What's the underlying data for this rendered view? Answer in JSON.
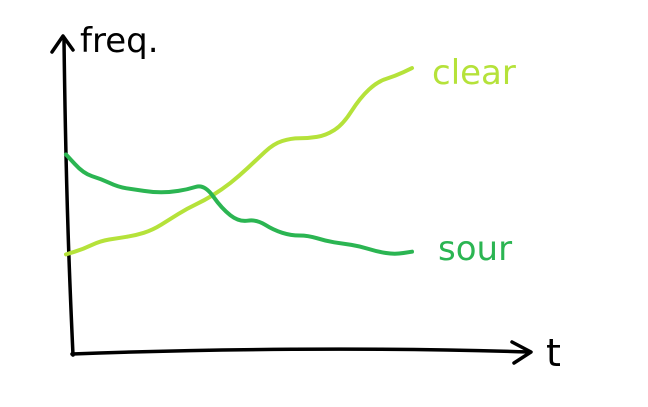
{
  "chart_data": {
    "type": "line",
    "title": "",
    "xlabel": "t",
    "ylabel": "freq.",
    "grid": false,
    "legend": "inline-labels-at-line-ends",
    "xlim": [
      0,
      100
    ],
    "ylim": [
      0,
      100
    ],
    "series": [
      {
        "name": "clear",
        "color": "#b5e23a",
        "x": [
          0,
          5,
          10,
          15,
          20,
          25,
          30,
          35,
          40,
          45,
          50,
          55,
          60,
          65,
          70,
          75,
          80,
          85,
          90,
          95,
          100
        ],
        "values": [
          28,
          30,
          33,
          34,
          35,
          37,
          41,
          45,
          48,
          52,
          57,
          63,
          69,
          71,
          71,
          72,
          76,
          86,
          92,
          94,
          97
        ]
      },
      {
        "name": "sour",
        "color": "#2bb552",
        "x": [
          0,
          5,
          10,
          15,
          20,
          25,
          30,
          35,
          40,
          45,
          50,
          55,
          60,
          65,
          70,
          75,
          80,
          85,
          90,
          95,
          100
        ],
        "values": [
          65,
          58,
          56,
          53,
          52,
          51,
          51,
          52,
          54,
          45,
          40,
          41,
          37,
          35,
          35,
          33,
          32,
          31,
          29,
          28,
          29
        ]
      }
    ]
  }
}
